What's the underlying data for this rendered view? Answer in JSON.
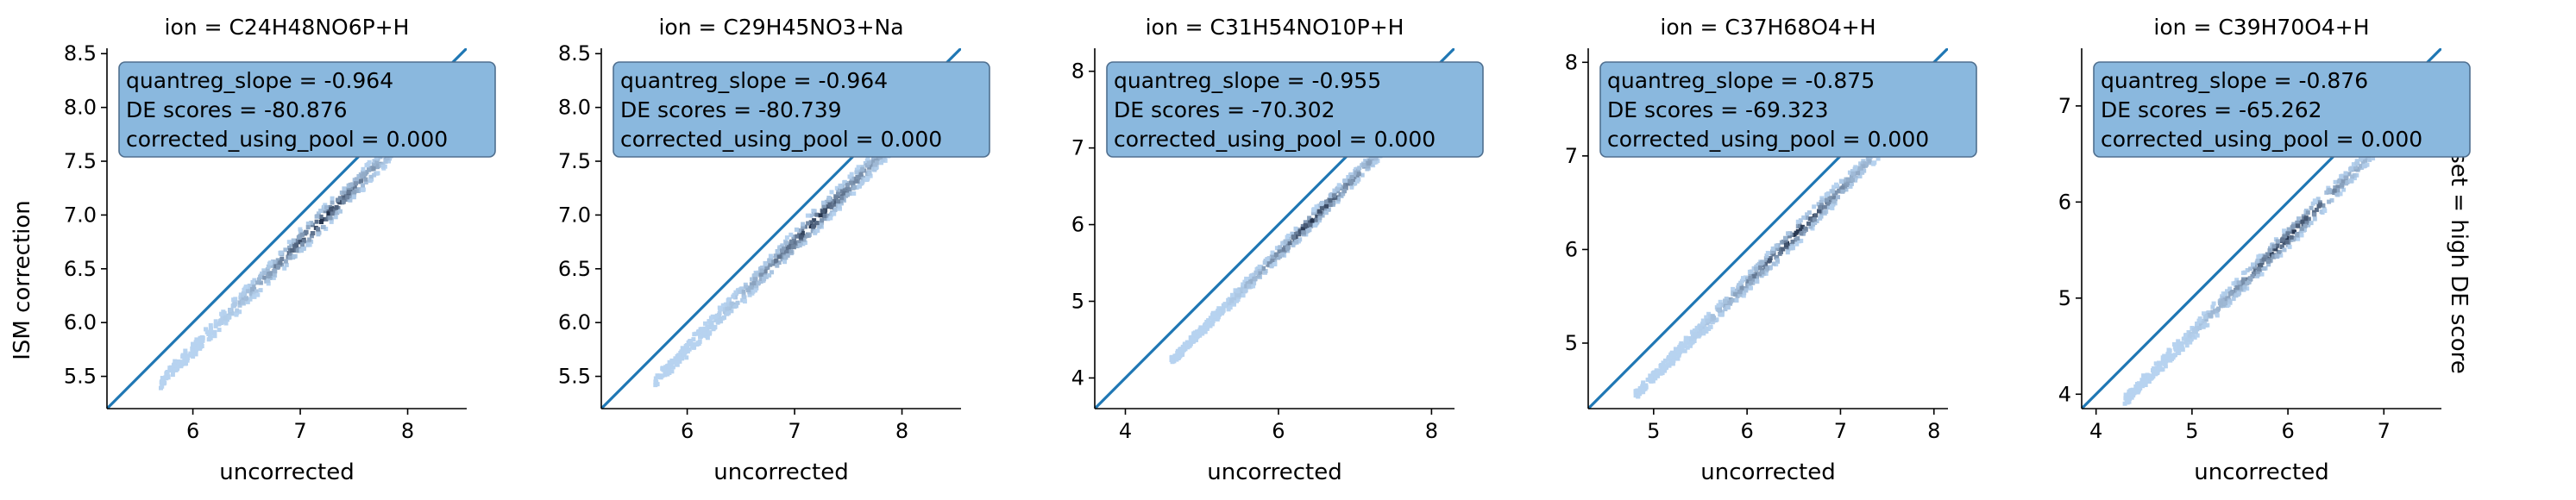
{
  "chart_data": {
    "type": "hexbin",
    "ylabel": "ISM correction",
    "row_label": "set = high DE score",
    "reference_line": "y = x",
    "colors": {
      "line": "#1f77b4",
      "annotation_face": "#8ab8de",
      "annotation_edge": "#4f6f8f",
      "density_low": "#b7d3f0",
      "density_high": "#0d1a33"
    },
    "panels": [
      {
        "title": "ion = C24H48NO6P+H",
        "xlabel": "uncorrected",
        "xlim": [
          5.2,
          8.55
        ],
        "ylim": [
          5.2,
          8.55
        ],
        "xticks": [
          "6",
          "7",
          "8"
        ],
        "yticks": [
          "5.5",
          "6.0",
          "6.5",
          "7.0",
          "7.5",
          "8.0",
          "8.5"
        ],
        "annotation": [
          "quantreg_slope = -0.964",
          "DE scores = -80.876",
          "corrected_using_pool = 0.000"
        ],
        "fit": {
          "slope": 1.0,
          "intercept": -0.25
        },
        "x_range": [
          5.7,
          8.4
        ]
      },
      {
        "title": "ion = C29H45NO3+Na",
        "xlabel": "uncorrected",
        "xlim": [
          5.2,
          8.55
        ],
        "ylim": [
          5.2,
          8.55
        ],
        "xticks": [
          "6",
          "7",
          "8"
        ],
        "yticks": [
          "5.5",
          "6.0",
          "6.5",
          "7.0",
          "7.5",
          "8.0",
          "8.5"
        ],
        "annotation": [
          "quantreg_slope = -0.964",
          "DE scores = -80.739",
          "corrected_using_pool = 0.000"
        ],
        "fit": {
          "slope": 1.0,
          "intercept": -0.25
        },
        "x_range": [
          5.7,
          8.4
        ]
      },
      {
        "title": "ion = C31H54NO10P+H",
        "xlabel": "uncorrected",
        "xlim": [
          3.6,
          8.3
        ],
        "ylim": [
          3.6,
          8.3
        ],
        "xticks": [
          "4",
          "6",
          "8"
        ],
        "yticks": [
          "4",
          "5",
          "6",
          "7",
          "8"
        ],
        "annotation": [
          "quantreg_slope = -0.955",
          "DE scores = -70.302",
          "corrected_using_pool = 0.000"
        ],
        "fit": {
          "slope": 1.0,
          "intercept": -0.38
        },
        "x_range": [
          4.6,
          8.0
        ]
      },
      {
        "title": "ion = C37H68O4+H",
        "xlabel": "uncorrected",
        "xlim": [
          4.3,
          8.15
        ],
        "ylim": [
          4.3,
          8.15
        ],
        "xticks": [
          "5",
          "6",
          "7",
          "8"
        ],
        "yticks": [
          "5",
          "6",
          "7",
          "8"
        ],
        "annotation": [
          "quantreg_slope = -0.875",
          "DE scores = -69.323",
          "corrected_using_pool = 0.000"
        ],
        "fit": {
          "slope": 1.0,
          "intercept": -0.36
        },
        "x_range": [
          4.8,
          7.9
        ]
      },
      {
        "title": "ion = C39H70O4+H",
        "xlabel": "uncorrected",
        "xlim": [
          3.85,
          7.6
        ],
        "ylim": [
          3.85,
          7.6
        ],
        "xticks": [
          "4",
          "5",
          "6",
          "7"
        ],
        "yticks": [
          "4",
          "5",
          "6",
          "7"
        ],
        "annotation": [
          "quantreg_slope = -0.876",
          "DE scores = -65.262",
          "corrected_using_pool = 0.000"
        ],
        "fit": {
          "slope": 1.0,
          "intercept": -0.37
        },
        "x_range": [
          4.3,
          7.4
        ]
      }
    ]
  }
}
